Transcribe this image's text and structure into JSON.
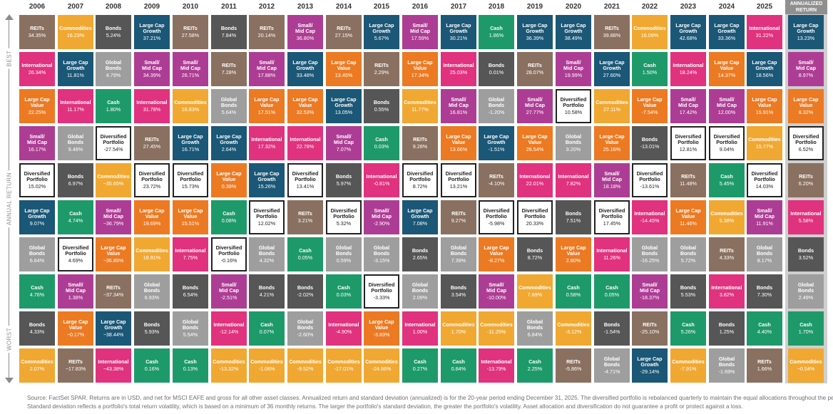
{
  "axis": {
    "best": "BEST",
    "annual_return": "ANNUAL RETURN",
    "worst": "WORST"
  },
  "annualized_header": "ANNUALIZED RETURN",
  "colors": {
    "REITs": "#8a7060",
    "Commodities": "#f0a832",
    "Bonds": "#565656",
    "Large Cap Growth": "#1b5776",
    "Small/Mid Cap": "#ad3d94",
    "Cash": "#1e9a6a",
    "International": "#e0327e",
    "Large Cap Value": "#ec7a22",
    "Global Bonds": "#9e9e9e",
    "Diversified Portfolio": "#ffffff"
  },
  "chart_data": {
    "type": "table",
    "title": "Asset class annual returns ranked best to worst",
    "ylabel": "ANNUAL RETURN",
    "years": [
      "2006",
      "2007",
      "2008",
      "2009",
      "2010",
      "2011",
      "2012",
      "2013",
      "2014",
      "2015",
      "2016",
      "2017",
      "2018",
      "2019",
      "2020",
      "2021",
      "2022",
      "2023",
      "2024",
      "2025"
    ],
    "columns": [
      [
        [
          "REITs",
          "34.35%"
        ],
        [
          "International",
          "26.34%"
        ],
        [
          "Large Cap Value",
          "22.25%"
        ],
        [
          "Small/ Mid Cap",
          "16.17%"
        ],
        [
          "Diversified Portfolio",
          "15.02%"
        ],
        [
          "Large Cap Growth",
          "9.07%"
        ],
        [
          "Global Bonds",
          "6.64%"
        ],
        [
          "Cash",
          "4.76%"
        ],
        [
          "Bonds",
          "4.33%"
        ],
        [
          "Commodities",
          "2.07%"
        ]
      ],
      [
        [
          "Commodities",
          "16.23%"
        ],
        [
          "Large Cap Growth",
          "11.81%"
        ],
        [
          "International",
          "11.17%"
        ],
        [
          "Global Bonds",
          "9.48%"
        ],
        [
          "Bonds",
          "6.97%"
        ],
        [
          "Cash",
          "4.74%"
        ],
        [
          "Diversified Portfolio",
          "4.69%"
        ],
        [
          "Small/ Mid Cap",
          "1.38%"
        ],
        [
          "Large Cap Value",
          "−0.17%"
        ],
        [
          "REITs",
          "−17.83%"
        ]
      ],
      [
        [
          "Bonds",
          "5.24%"
        ],
        [
          "Global Bonds",
          "4.79%"
        ],
        [
          "Cash",
          "1.80%"
        ],
        [
          "Diversified Portfolio",
          "-27.54%"
        ],
        [
          "Commodities",
          "−35.65%"
        ],
        [
          "Small/ Mid Cap",
          "−36.79%"
        ],
        [
          "Large Cap Value",
          "−36.85%"
        ],
        [
          "REITs",
          "−37.34%"
        ],
        [
          "Large Cap Growth",
          "−38.44%"
        ],
        [
          "International",
          "−43.38%"
        ]
      ],
      [
        [
          "Large Cap Growth",
          "37.21%"
        ],
        [
          "Small/ Mid Cap",
          "34.39%"
        ],
        [
          "International",
          "31.78%"
        ],
        [
          "REITs",
          "27.45%"
        ],
        [
          "Diversified Portfolio",
          "23.72%"
        ],
        [
          "Large Cap Value",
          "19.69%"
        ],
        [
          "Commodities",
          "18.91%"
        ],
        [
          "Global Bonds",
          "6.93%"
        ],
        [
          "Bonds",
          "5.93%"
        ],
        [
          "Cash",
          "0.16%"
        ]
      ],
      [
        [
          "REITs",
          "27.58%"
        ],
        [
          "Small/ Mid Cap",
          "26.71%"
        ],
        [
          "Commodities",
          "16.83%"
        ],
        [
          "Large Cap Growth",
          "16.71%"
        ],
        [
          "Diversified Portfolio",
          "15.73%"
        ],
        [
          "Large Cap Value",
          "15.51%"
        ],
        [
          "International",
          "7.75%"
        ],
        [
          "Bonds",
          "6.54%"
        ],
        [
          "Global Bonds",
          "5.54%"
        ],
        [
          "Cash",
          "0.13%"
        ]
      ],
      [
        [
          "Bonds",
          "7.84%"
        ],
        [
          "REITs",
          "7.28%"
        ],
        [
          "Global Bonds",
          "5.64%"
        ],
        [
          "Large Cap Growth",
          "2.64%"
        ],
        [
          "Large Cap Value",
          "0.39%"
        ],
        [
          "Cash",
          "0.08%"
        ],
        [
          "Diversified Portfolio",
          "-0.16%"
        ],
        [
          "Small/ Mid Cap",
          "-2.51%"
        ],
        [
          "International",
          "-12.14%"
        ],
        [
          "Commodities",
          "-13.32%"
        ]
      ],
      [
        [
          "REITs",
          "20.14%"
        ],
        [
          "Small/ Mid Cap",
          "17.88%"
        ],
        [
          "Large Cap Value",
          "17.51%"
        ],
        [
          "International",
          "17.32%"
        ],
        [
          "Large Cap Growth",
          "15.26%"
        ],
        [
          "Diversified Portfolio",
          "12.02%"
        ],
        [
          "Global Bonds",
          "4.32%"
        ],
        [
          "Bonds",
          "4.21%"
        ],
        [
          "Cash",
          "0.07%"
        ],
        [
          "Commodities",
          "-1.06%"
        ]
      ],
      [
        [
          "Small/ Mid Cap",
          "36.80%"
        ],
        [
          "Large Cap Growth",
          "33.48%"
        ],
        [
          "Large Cap Value",
          "32.53%"
        ],
        [
          "International",
          "22.78%"
        ],
        [
          "Diversified Portfolio",
          "13.41%"
        ],
        [
          "REITs",
          "3.21%"
        ],
        [
          "Cash",
          "0.05%"
        ],
        [
          "Bonds",
          "-2.02%"
        ],
        [
          "Global Bonds",
          "-2.60%"
        ],
        [
          "Commodities",
          "-9.52%"
        ]
      ],
      [
        [
          "REITs",
          "27.15%"
        ],
        [
          "Large Cap Value",
          "13.45%"
        ],
        [
          "Large Cap Growth",
          "13.05%"
        ],
        [
          "Small/ Mid Cap",
          "7.07%"
        ],
        [
          "Bonds",
          "5.97%"
        ],
        [
          "Diversified Portfolio",
          "5.32%"
        ],
        [
          "Global Bonds",
          "0.59%"
        ],
        [
          "Cash",
          "0.03%"
        ],
        [
          "International",
          "-4.90%"
        ],
        [
          "Commodities",
          "-17.01%"
        ]
      ],
      [
        [
          "Large Cap Growth",
          "5.67%"
        ],
        [
          "REITs",
          "2.29%"
        ],
        [
          "Bonds",
          "0.55%"
        ],
        [
          "Cash",
          "0.03%"
        ],
        [
          "International",
          "-0.81%"
        ],
        [
          "Small/ Mid Cap",
          "-2.90%"
        ],
        [
          "Global Bonds",
          "-3.15%"
        ],
        [
          "Diversified Portfolio",
          "-3.33%"
        ],
        [
          "Large Cap Value",
          "-3.83%"
        ],
        [
          "Commodities",
          "-24.66%"
        ]
      ],
      [
        [
          "Small/ Mid Cap",
          "17.59%"
        ],
        [
          "Large Cap Value",
          "17.34%"
        ],
        [
          "Commodities",
          "11.77%"
        ],
        [
          "REITs",
          "9.28%"
        ],
        [
          "Diversified Portfolio",
          "8.72%"
        ],
        [
          "Large Cap Growth",
          "7.08%"
        ],
        [
          "Bonds",
          "2.65%"
        ],
        [
          "Global Bonds",
          "2.09%"
        ],
        [
          "International",
          "1.00%"
        ],
        [
          "Cash",
          "0.27%"
        ]
      ],
      [
        [
          "Large Cap Growth",
          "30.21%"
        ],
        [
          "International",
          "25.03%"
        ],
        [
          "Small/ Mid Cap",
          "16.81%"
        ],
        [
          "Large Cap Value",
          "13.66%"
        ],
        [
          "Diversified Portfolio",
          "13.21%"
        ],
        [
          "REITs",
          "9.27%"
        ],
        [
          "Global Bonds",
          "7.39%"
        ],
        [
          "Bonds",
          "3.54%"
        ],
        [
          "Commodities",
          "1.70%"
        ],
        [
          "Cash",
          "0.84%"
        ]
      ],
      [
        [
          "Cash",
          "1.86%"
        ],
        [
          "Bonds",
          "0.01%"
        ],
        [
          "Global Bonds",
          "-1.20%"
        ],
        [
          "Large Cap Growth",
          "-1.51%"
        ],
        [
          "REITs",
          "-4.10%"
        ],
        [
          "Diversified Portfolio",
          "-5.98%"
        ],
        [
          "Large Cap Value",
          "-8.27%"
        ],
        [
          "Small/ Mid Cap",
          "-10.00%"
        ],
        [
          "Commodities",
          "-11.25%"
        ],
        [
          "International",
          "-13.79%"
        ]
      ],
      [
        [
          "Large Cap Growth",
          "36.39%"
        ],
        [
          "REITs",
          "28.07%"
        ],
        [
          "Small/ Mid Cap",
          "27.77%"
        ],
        [
          "Large Cap Value",
          "26.54%"
        ],
        [
          "International",
          "22.01%"
        ],
        [
          "Diversified Portfolio",
          "20.33%"
        ],
        [
          "Bonds",
          "8.72%"
        ],
        [
          "Commodities",
          "7.69%"
        ],
        [
          "Global Bonds",
          "6.84%"
        ],
        [
          "Cash",
          "2.25%"
        ]
      ],
      [
        [
          "Large Cap Growth",
          "38.49%"
        ],
        [
          "Small/ Mid Cap",
          "19.99%"
        ],
        [
          "Diversified Portfolio",
          "10.58%"
        ],
        [
          "Global Bonds",
          "9.20%"
        ],
        [
          "International",
          "7.82%"
        ],
        [
          "Bonds",
          "7.51%"
        ],
        [
          "Large Cap Value",
          "2.80%"
        ],
        [
          "Cash",
          "0.58%"
        ],
        [
          "Commodities",
          "-3.12%"
        ],
        [
          "REITs",
          "-5.86%"
        ]
      ],
      [
        [
          "REITs",
          "39.88%"
        ],
        [
          "Large Cap Growth",
          "27.60%"
        ],
        [
          "Commodities",
          "27.11%"
        ],
        [
          "Large Cap Value",
          "25.16%"
        ],
        [
          "Small/ Mid Cap",
          "18.18%"
        ],
        [
          "Diversified Portfolio",
          "17.45%"
        ],
        [
          "International",
          "11.26%"
        ],
        [
          "Cash",
          "0.05%"
        ],
        [
          "Bonds",
          "-1.54%"
        ],
        [
          "Global Bonds",
          "-4.71%"
        ]
      ],
      [
        [
          "Commodities",
          "16.09%"
        ],
        [
          "Cash",
          "1.50%"
        ],
        [
          "Large Cap Value",
          "-7.54%"
        ],
        [
          "Bonds",
          "-13.01%"
        ],
        [
          "Diversified Portfolio",
          "-13.61%"
        ],
        [
          "International",
          "-14.45%"
        ],
        [
          "Global Bonds",
          "-16.25%"
        ],
        [
          "Small/ Mid Cap",
          "-18.37%"
        ],
        [
          "REITs",
          "-25.10%"
        ],
        [
          "Large Cap Growth",
          "-29.14%"
        ]
      ],
      [
        [
          "Large Cap Growth",
          "42.68%"
        ],
        [
          "International",
          "18.24%"
        ],
        [
          "Small/ Mid Cap",
          "17.42%"
        ],
        [
          "Diversified Portfolio",
          "12.81%"
        ],
        [
          "REITs",
          "11.48%"
        ],
        [
          "Large Cap Value",
          "11.46%"
        ],
        [
          "Global Bonds",
          "5.72%"
        ],
        [
          "Bonds",
          "5.53%"
        ],
        [
          "Cash",
          "5.26%"
        ],
        [
          "Commodities",
          "-7.91%"
        ]
      ],
      [
        [
          "Large Cap Growth",
          "33.36%"
        ],
        [
          "Large Cap Value",
          "14.37%"
        ],
        [
          "Small/ Mid Cap",
          "12.00%"
        ],
        [
          "Diversified Portfolio",
          "9.04%"
        ],
        [
          "Cash",
          "5.45%"
        ],
        [
          "Commodities",
          "5.38%"
        ],
        [
          "REITs",
          "4.33%"
        ],
        [
          "International",
          "3.82%"
        ],
        [
          "Bonds",
          "1.25%"
        ],
        [
          "Global Bonds",
          "-1.69%"
        ]
      ],
      [
        [
          "International",
          "31.22%"
        ],
        [
          "Large Cap Growth",
          "18.56%"
        ],
        [
          "Large Cap Value",
          "15.91%"
        ],
        [
          "Commodities",
          "15.77%"
        ],
        [
          "Diversified Portfolio",
          "14.03%"
        ],
        [
          "Small/ Mid Cap",
          "11.91%"
        ],
        [
          "Global Bonds",
          "8.17%"
        ],
        [
          "Bonds",
          "7.30%"
        ],
        [
          "Cash",
          "4.40%"
        ],
        [
          "REITs",
          "1.66%"
        ]
      ]
    ],
    "annualized": [
      [
        "Large Cap Growth",
        "13.23%"
      ],
      [
        "Small/ Mid Cap",
        "8.97%"
      ],
      [
        "Large Cap Value",
        "8.32%"
      ],
      [
        "Diversified Portfolio",
        "6.52%"
      ],
      [
        "REITs",
        "6.20%"
      ],
      [
        "International",
        "5.58%"
      ],
      [
        "Bonds",
        "3.52%"
      ],
      [
        "Global Bonds",
        "2.49%"
      ],
      [
        "Cash",
        "1.70%"
      ],
      [
        "Commodities",
        "−0.54%"
      ]
    ]
  },
  "footnote": {
    "line1": "Source: FactSet SPAR. Returns are in USD, and net for MSCI EAFE and gross for all other asset classes. Annualized return and standard deviation (annualized) is for the 20-year period ending December 31, 2025. The diversified portfolio is rebalanced quarterly to maintain the equal allocations throughout the period.",
    "line2": "Standard deviation reflects a portfolio's total return volatility, which is based on a minimum of 36 monthly returns. The larger the portfolio's standard deviation, the greater the portfolio's volatility. Asset allocation and diversification do not guarantee a profit or protect against a loss."
  }
}
